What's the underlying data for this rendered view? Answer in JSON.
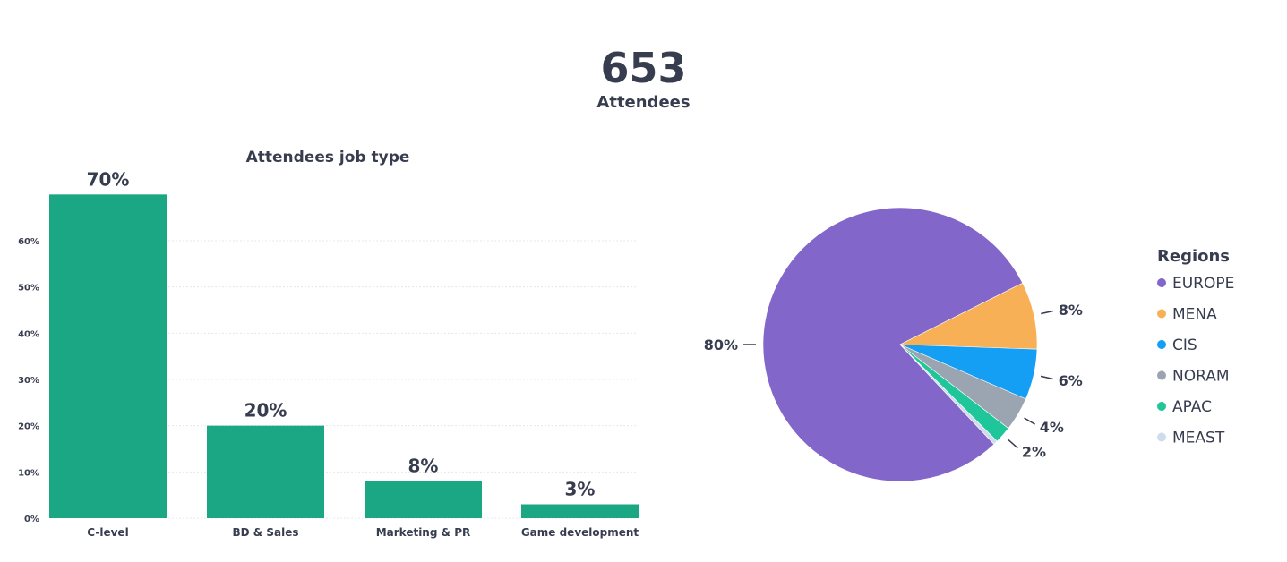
{
  "header": {
    "total": "653",
    "total_label": "Attendees"
  },
  "chart_data": [
    {
      "type": "bar",
      "title": "Attendees job type",
      "categories": [
        "C-level",
        "BD & Sales",
        "Marketing & PR",
        "Game development"
      ],
      "values": [
        70,
        20,
        8,
        3
      ],
      "data_labels": [
        "70%",
        "20%",
        "8%",
        "3%"
      ],
      "yticks": [
        "0%",
        "10%",
        "20%",
        "30%",
        "40%",
        "50%",
        "60%"
      ],
      "ylim": [
        0,
        70
      ],
      "grid": true,
      "color": "#1ba784"
    },
    {
      "type": "pie",
      "legend_title": "Regions",
      "legend_position": "right",
      "categories": [
        "EUROPE",
        "MENA",
        "CIS",
        "NORAM",
        "APAC",
        "MEAST"
      ],
      "values": [
        80,
        8,
        6,
        4,
        2,
        0.5
      ],
      "data_labels": [
        "80%",
        "8%",
        "6%",
        "4%",
        "2%",
        ""
      ],
      "colors": [
        "#8266c9",
        "#f7b056",
        "#149ff4",
        "#9ba5b1",
        "#1fc69a",
        "#cfdcec"
      ]
    }
  ]
}
